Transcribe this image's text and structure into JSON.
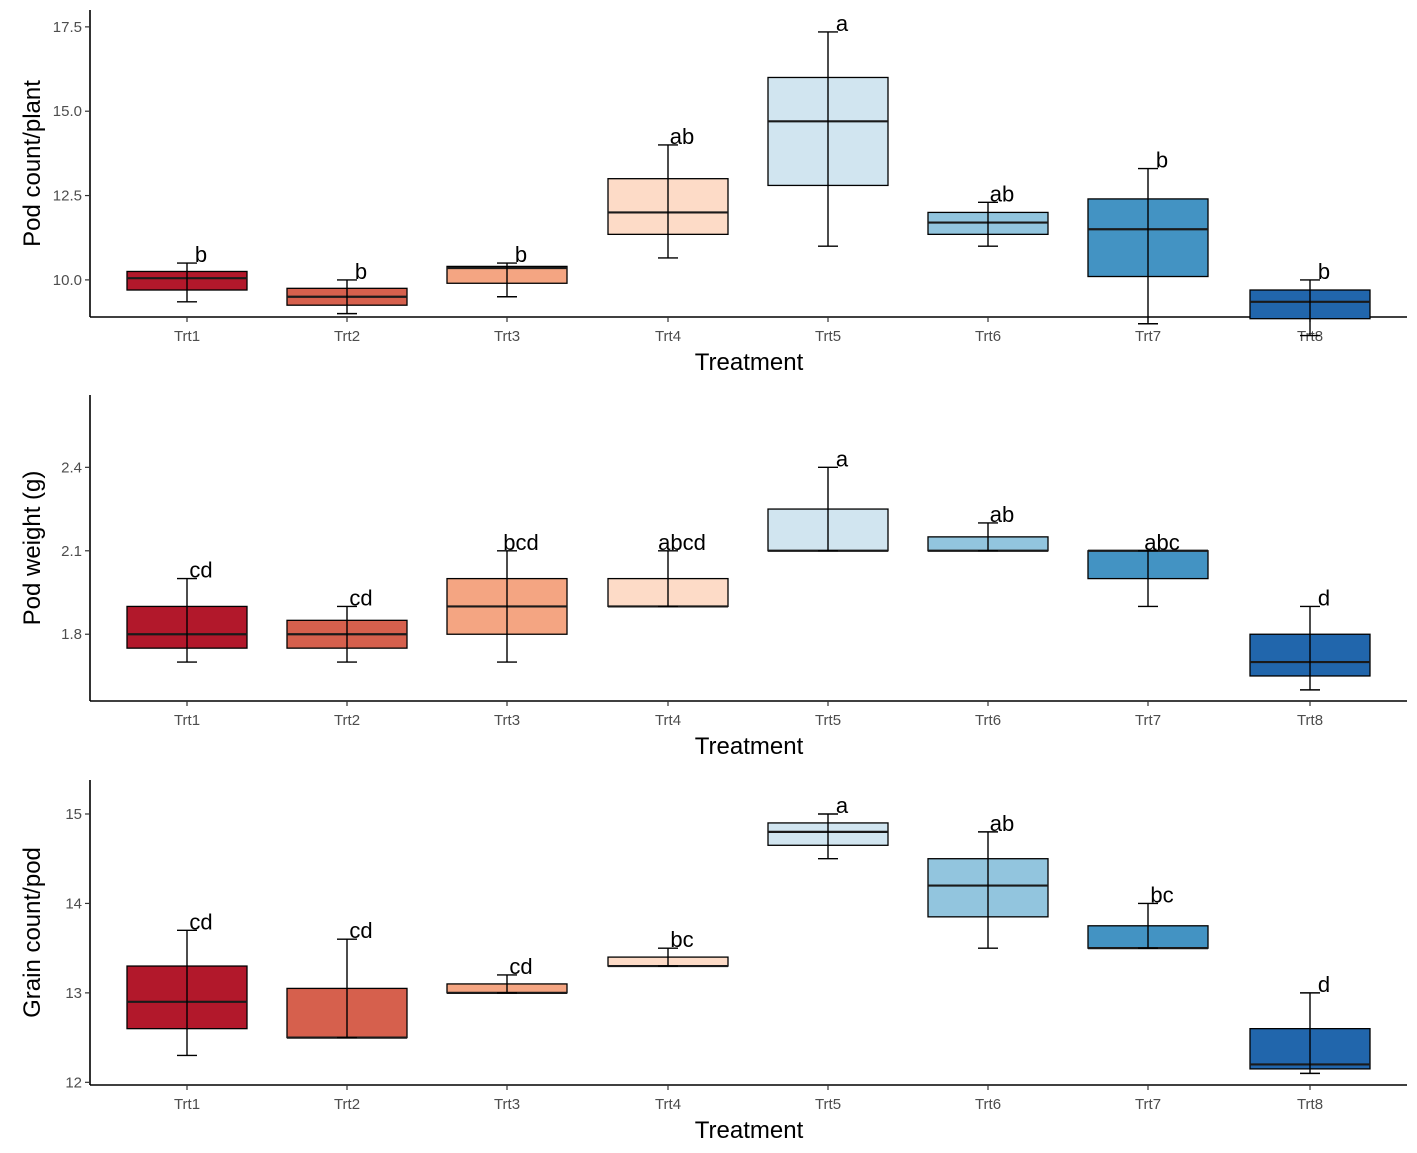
{
  "chart_data": [
    {
      "type": "box",
      "ylabel": "Pod count/plant",
      "xlabel": "Treatment",
      "categories": [
        "Trt1",
        "Trt2",
        "Trt3",
        "Trt4",
        "Trt5",
        "Trt6",
        "Trt7",
        "Trt8"
      ],
      "ylim": [
        8.9,
        18.0
      ],
      "yticks": [
        10.0,
        12.5,
        15.0,
        17.5
      ],
      "ytick_labels": [
        "10.0",
        "12.5",
        "15.0",
        "17.5"
      ],
      "boxes": [
        {
          "min": 9.35,
          "q1": 9.7,
          "median": 10.05,
          "q3": 10.25,
          "max": 10.5,
          "letter": "b",
          "color": "#b2182b"
        },
        {
          "min": 9.0,
          "q1": 9.25,
          "median": 9.5,
          "q3": 9.75,
          "max": 10.0,
          "letter": "b",
          "color": "#d6604d"
        },
        {
          "min": 9.5,
          "q1": 9.9,
          "median": 10.35,
          "q3": 10.4,
          "max": 10.5,
          "letter": "b",
          "color": "#f4a582"
        },
        {
          "min": 10.65,
          "q1": 11.35,
          "median": 12.0,
          "q3": 13.0,
          "max": 14.0,
          "letter": "ab",
          "color": "#fddbc7"
        },
        {
          "min": 11.0,
          "q1": 12.8,
          "median": 14.7,
          "q3": 16.0,
          "max": 17.35,
          "letter": "a",
          "color": "#d1e5f0"
        },
        {
          "min": 11.0,
          "q1": 11.35,
          "median": 11.7,
          "q3": 12.0,
          "max": 12.3,
          "letter": "ab",
          "color": "#92c5de"
        },
        {
          "min": 8.7,
          "q1": 10.1,
          "median": 11.5,
          "q3": 12.4,
          "max": 13.3,
          "letter": "b",
          "color": "#4393c3"
        },
        {
          "min": 8.35,
          "q1": 8.85,
          "median": 9.35,
          "q3": 9.7,
          "max": 10.0,
          "letter": "b",
          "color": "#2166ac"
        }
      ]
    },
    {
      "type": "box",
      "ylabel": "Pod weight (g)",
      "xlabel": "Treatment",
      "categories": [
        "Trt1",
        "Trt2",
        "Trt3",
        "Trt4",
        "Trt5",
        "Trt6",
        "Trt7",
        "Trt8"
      ],
      "ylim": [
        1.56,
        2.66
      ],
      "yticks": [
        1.8,
        2.1,
        2.4
      ],
      "ytick_labels": [
        "1.8",
        "2.1",
        "2.4"
      ],
      "boxes": [
        {
          "min": 1.7,
          "q1": 1.75,
          "median": 1.8,
          "q3": 1.9,
          "max": 2.0,
          "letter": "cd",
          "color": "#b2182b"
        },
        {
          "min": 1.7,
          "q1": 1.75,
          "median": 1.8,
          "q3": 1.85,
          "max": 1.9,
          "letter": "cd",
          "color": "#d6604d"
        },
        {
          "min": 1.7,
          "q1": 1.8,
          "median": 1.9,
          "q3": 2.0,
          "max": 2.1,
          "letter": "bcd",
          "color": "#f4a582"
        },
        {
          "min": 1.9,
          "q1": 1.9,
          "median": 1.9,
          "q3": 2.0,
          "max": 2.1,
          "letter": "abcd",
          "color": "#fddbc7"
        },
        {
          "min": 2.1,
          "q1": 2.1,
          "median": 2.1,
          "q3": 2.25,
          "max": 2.4,
          "letter": "a",
          "color": "#d1e5f0"
        },
        {
          "min": 2.1,
          "q1": 2.1,
          "median": 2.1,
          "q3": 2.15,
          "max": 2.2,
          "letter": "ab",
          "color": "#92c5de"
        },
        {
          "min": 1.9,
          "q1": 2.0,
          "median": 2.1,
          "q3": 2.1,
          "max": 2.1,
          "letter": "abc",
          "color": "#4393c3"
        },
        {
          "min": 1.6,
          "q1": 1.65,
          "median": 1.7,
          "q3": 1.8,
          "max": 1.9,
          "letter": "d",
          "color": "#2166ac"
        }
      ]
    },
    {
      "type": "box",
      "ylabel": "Grain count/pod",
      "xlabel": "Treatment",
      "categories": [
        "Trt1",
        "Trt2",
        "Trt3",
        "Trt4",
        "Trt5",
        "Trt6",
        "Trt7",
        "Trt8"
      ],
      "ylim": [
        11.97,
        15.38
      ],
      "yticks": [
        12,
        13,
        14,
        15
      ],
      "ytick_labels": [
        "12",
        "13",
        "14",
        "15"
      ],
      "boxes": [
        {
          "min": 12.3,
          "q1": 12.6,
          "median": 12.9,
          "q3": 13.3,
          "max": 13.7,
          "letter": "cd",
          "color": "#b2182b"
        },
        {
          "min": 12.5,
          "q1": 12.5,
          "median": 12.5,
          "q3": 13.05,
          "max": 13.6,
          "letter": "cd",
          "color": "#d6604d"
        },
        {
          "min": 13.0,
          "q1": 13.0,
          "median": 13.0,
          "q3": 13.1,
          "max": 13.2,
          "letter": "cd",
          "color": "#f4a582"
        },
        {
          "min": 13.3,
          "q1": 13.3,
          "median": 13.3,
          "q3": 13.4,
          "max": 13.5,
          "letter": "bc",
          "color": "#fddbc7"
        },
        {
          "min": 14.5,
          "q1": 14.65,
          "median": 14.8,
          "q3": 14.9,
          "max": 15.0,
          "letter": "a",
          "color": "#d1e5f0"
        },
        {
          "min": 13.5,
          "q1": 13.85,
          "median": 14.2,
          "q3": 14.5,
          "max": 14.8,
          "letter": "ab",
          "color": "#92c5de"
        },
        {
          "min": 13.5,
          "q1": 13.5,
          "median": 13.5,
          "q3": 13.75,
          "max": 14.0,
          "letter": "bc",
          "color": "#4393c3"
        },
        {
          "min": 12.1,
          "q1": 12.15,
          "median": 12.2,
          "q3": 12.6,
          "max": 13.0,
          "letter": "d",
          "color": "#2166ac"
        }
      ]
    }
  ]
}
